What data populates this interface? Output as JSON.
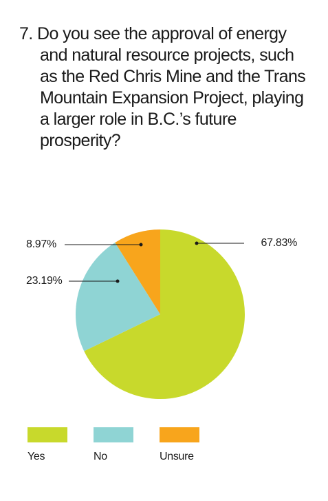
{
  "chart_data": {
    "type": "pie",
    "title": "7. Do you see the approval of energy and natural resource projects, such as the Red Chris Mine and the Trans Mountain Expansion Project, playing a larger role in B.C.’s future prosperity?",
    "categories": [
      "Yes",
      "No",
      "Unsure"
    ],
    "values": [
      67.83,
      23.19,
      8.97
    ],
    "value_labels": [
      "67.83%",
      "23.19%",
      "8.97%"
    ],
    "colors": [
      "#c8d92c",
      "#8fd4d4",
      "#f8a51c"
    ]
  }
}
